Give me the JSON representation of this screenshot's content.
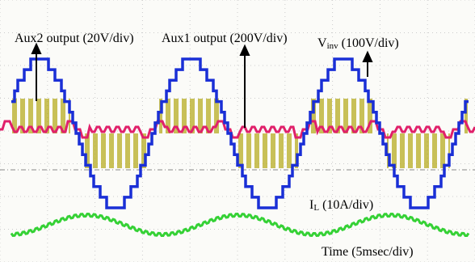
{
  "labels": {
    "aux2": "Aux2 output (20V/div)",
    "aux1": "Aux1 output (200V/div)",
    "vinv": {
      "main": "V",
      "sub": "inv",
      "rest": " (100V/div)"
    },
    "il": {
      "main": "I",
      "sub": "L",
      "rest": " (10A/div)"
    },
    "time": "Time (5msec/div)"
  }
}
